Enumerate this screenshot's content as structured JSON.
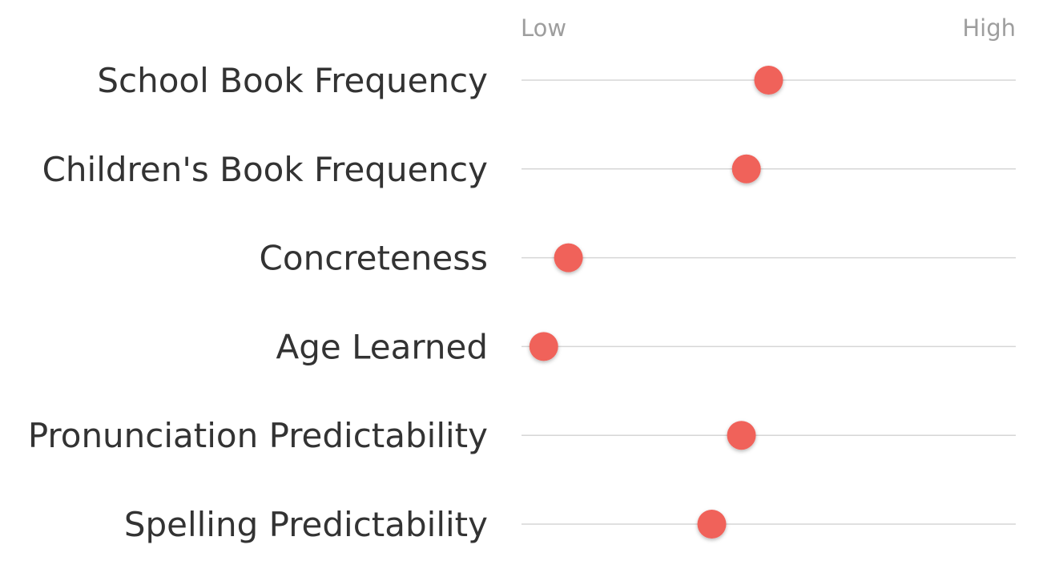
{
  "chart_data": {
    "type": "scatter",
    "scale_start_label": "Low",
    "scale_end_label": "High",
    "xlim": [
      0,
      1
    ],
    "dot_color": "#f0625a",
    "rows": [
      {
        "label": "School Book Frequency",
        "value": 0.5
      },
      {
        "label": "Children's Book Frequency",
        "value": 0.455
      },
      {
        "label": "Concreteness",
        "value": 0.095
      },
      {
        "label": "Age Learned",
        "value": 0.045
      },
      {
        "label": "Pronunciation Predictability",
        "value": 0.445
      },
      {
        "label": "Spelling Predictability",
        "value": 0.385
      }
    ]
  }
}
